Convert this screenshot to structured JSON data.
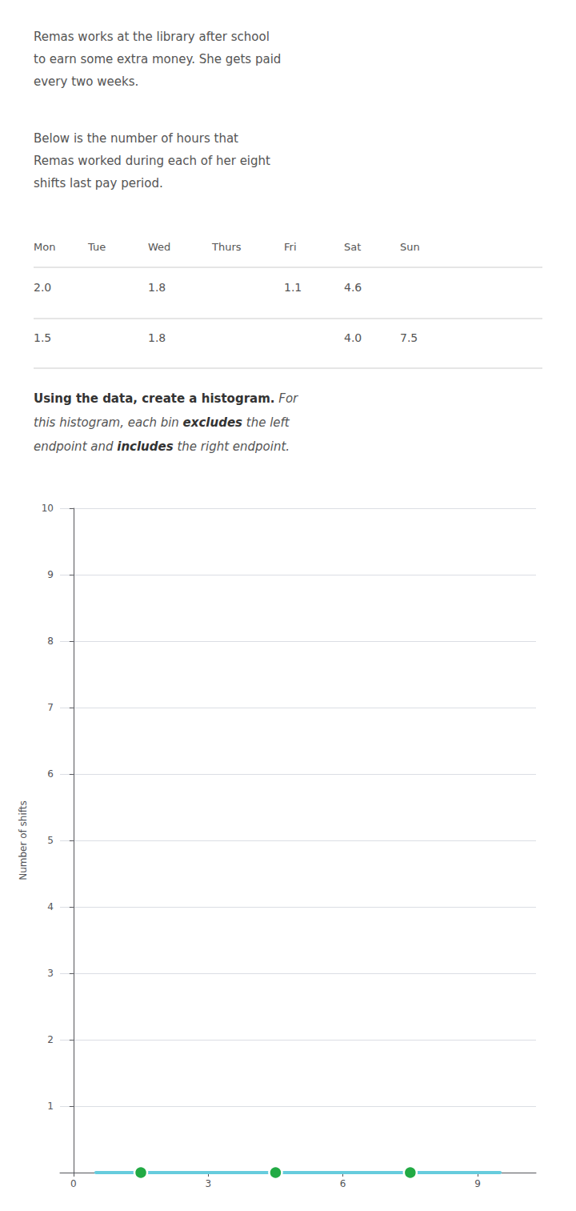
{
  "chart_data": {
    "type": "scatter",
    "annotations": {
      "paragraphs": [
        [
          "Remas works at the library after school",
          "to earn some extra money. She gets paid",
          "every two weeks."
        ],
        [
          "Below is the number of hours that",
          "Remas worked during each of her eight",
          "shifts last pay period."
        ]
      ],
      "table": {
        "headers": [
          "Mon",
          "Tue",
          "Wed",
          "Thurs",
          "Fri",
          "Sat",
          "Sun"
        ],
        "rows": [
          [
            "2.0",
            null,
            "1.8",
            null,
            "1.1",
            "4.6",
            null
          ],
          [
            "1.5",
            null,
            "1.8",
            null,
            null,
            "4.0",
            "7.5"
          ]
        ]
      },
      "instructions": [
        [
          {
            "text": "Using the data, create a histogram.",
            "style": "bold"
          },
          {
            "text": " For",
            "style": "italic"
          }
        ],
        [
          {
            "text": "this histogram, each bin ",
            "style": "italic"
          },
          {
            "text": "excludes",
            "style": "bold italic"
          },
          {
            "text": " the left",
            "style": "italic"
          }
        ],
        [
          {
            "text": "endpoint and ",
            "style": "italic"
          },
          {
            "text": "includes",
            "style": "bold italic"
          },
          {
            "text": " the right endpoint.",
            "style": "italic"
          }
        ]
      ]
    },
    "ylabel": "Number of shifts",
    "series": [
      {
        "type": "line",
        "color": "#66ccdd",
        "x": [
          0.5,
          9.5
        ],
        "values": [
          0,
          0
        ]
      },
      {
        "type": "scatter",
        "color": "#22aa44",
        "x": [
          1.5,
          4.5,
          7.5
        ],
        "values": [
          0,
          0,
          0
        ]
      }
    ],
    "xlim": [
      -0.3,
      10.3
    ],
    "xticks": [
      0,
      3,
      6,
      9
    ],
    "ylim": [
      0,
      10
    ],
    "yticks": [
      1,
      2,
      3,
      4,
      5,
      6,
      7,
      8,
      9,
      10
    ],
    "grid": true
  }
}
